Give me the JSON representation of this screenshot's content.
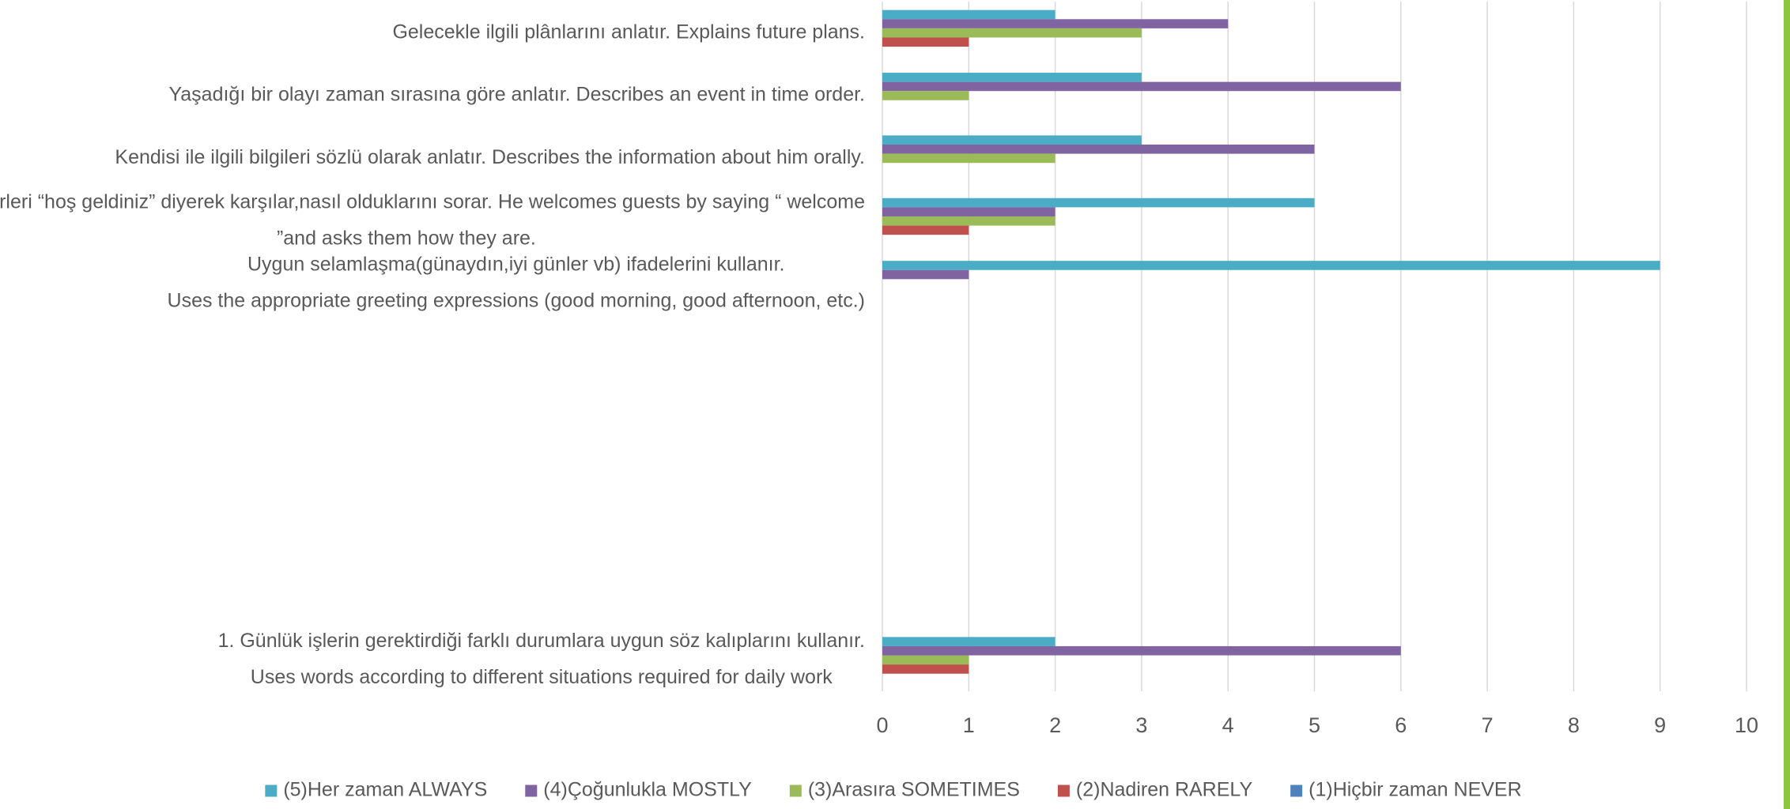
{
  "chart_data": {
    "type": "hbar",
    "categories": [
      [
        "Gelecekle ilgili plânlarını anlatır. Explains future plans."
      ],
      [
        "Yaşadığı bir olayı zaman sırasına göre anlatır. Describes an event in time order."
      ],
      [
        "Kendisi ile ilgili bilgileri sözlü olarak anlatır. Describes the information about him orally."
      ],
      [
        "Misafirleri “hoş geldiniz” diyerek karşılar,nasıl olduklarını sorar. He welcomes guests by saying “ welcome",
        "”and asks them how they are."
      ],
      [
        "Uygun selamlaşma(günaydın,iyi günler vb) ifadelerini kullanır.",
        "Uses the appropriate greeting expressions (good morning, good afternoon, etc.)"
      ],
      null,
      null,
      null,
      null,
      null,
      [
        "1.   Günlük işlerin gerektirdiği farklı durumlara uygun söz kalıplarını kullanır.",
        "Uses words according to different situations required for daily work"
      ]
    ],
    "series": [
      {
        "name": "(5)Her zaman ALWAYS",
        "color": "#4bacc6",
        "values": [
          2,
          3,
          3,
          5,
          9,
          null,
          null,
          null,
          null,
          null,
          2
        ]
      },
      {
        "name": "(4)Çoğunlukla MOSTLY",
        "color": "#8064a2",
        "values": [
          4,
          6,
          5,
          2,
          1,
          null,
          null,
          null,
          null,
          null,
          6
        ]
      },
      {
        "name": "(3)Arasıra SOMETIMES",
        "color": "#9bbb59",
        "values": [
          3,
          1,
          2,
          2,
          0,
          null,
          null,
          null,
          null,
          null,
          1
        ]
      },
      {
        "name": "(2)Nadiren  RARELY",
        "color": "#c0504d",
        "values": [
          1,
          0,
          0,
          1,
          0,
          null,
          null,
          null,
          null,
          null,
          1
        ]
      },
      {
        "name": "(1)Hiçbir zaman  NEVER",
        "color": "#4f81bd",
        "values": [
          0,
          0,
          0,
          0,
          0,
          null,
          null,
          null,
          null,
          null,
          0
        ]
      }
    ],
    "xlim": [
      0,
      10
    ],
    "xticks": [
      0,
      1,
      2,
      3,
      4,
      5,
      6,
      7,
      8,
      9,
      10
    ],
    "grid": true,
    "legend": "bottom"
  }
}
